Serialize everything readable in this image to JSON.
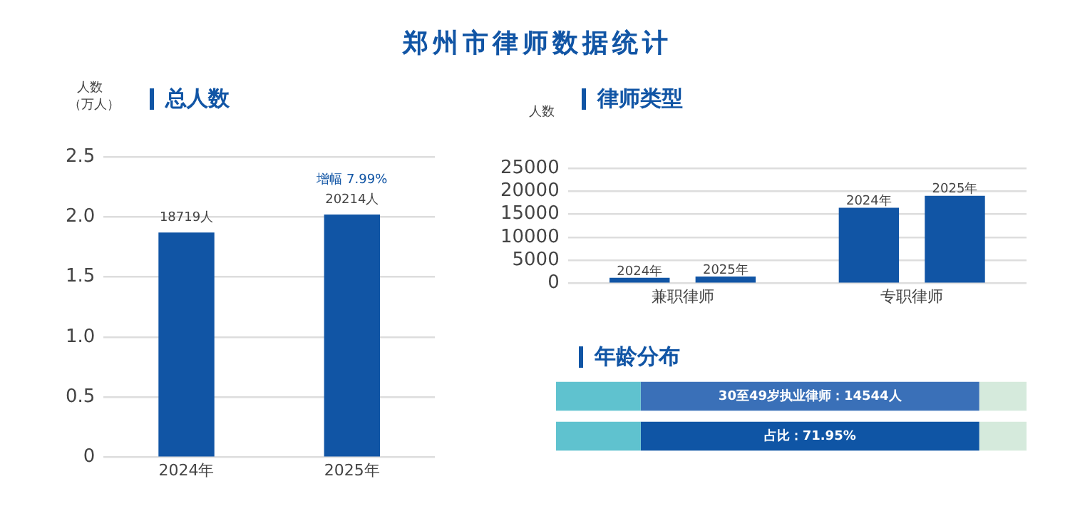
{
  "chart_data": [
    {
      "type": "bar",
      "title": "郑州市律师数据统计",
      "subtitle": "总人数",
      "ylabel": "人数（万人）",
      "categories": [
        "2024年",
        "2025年"
      ],
      "series": [
        {
          "color": "#1155a5",
          "values": [
            1.87,
            2.02
          ]
        }
      ],
      "annotations": [
        {
          "text": "18719人",
          "x": "2024年",
          "y": 1.87
        },
        {
          "text": "20214人",
          "x": "2025年",
          "y": 2.02
        },
        {
          "text": "增幅 7.99%",
          "x": "2025年",
          "y": 2.02
        }
      ],
      "ylim": [
        0,
        2.5
      ],
      "yticks": [
        {
          "value": 0,
          "label": "0"
        },
        {
          "value": 0.5,
          "label": "0.5"
        },
        {
          "value": 1,
          "label": "1.0"
        },
        {
          "value": 1.5,
          "label": "1.5"
        },
        {
          "value": 2,
          "label": "2.0"
        },
        {
          "value": 2.5,
          "label": "2.5"
        }
      ],
      "grid": "y",
      "legend": false
    },
    {
      "type": "bar",
      "title": "律师类型",
      "ylabel": "人数",
      "categories": [
        "兼职律师",
        "专职律师"
      ],
      "series": [
        {
          "name": "2024年",
          "color": "#1155a5",
          "values": [
            1200,
            16400
          ]
        },
        {
          "name": "2025年",
          "color": "#1155a5",
          "values": [
            1500,
            19000
          ]
        }
      ],
      "ylim": [
        0,
        25000
      ],
      "yticks": [
        0,
        5000,
        10000,
        15000,
        20000,
        25000
      ],
      "grid": "y",
      "legend": false
    },
    {
      "type": "bar",
      "title": "年龄分布",
      "orientation": "horizontal",
      "stacked": true,
      "categories": [
        null,
        null
      ],
      "series": [
        {
          "color": "#5fc2cf",
          "values": [
            18,
            18
          ]
        },
        {
          "colors": [
            "#3a70b8",
            "#0f55a5"
          ],
          "values": [
            71.95,
            71.95
          ],
          "value_labels": [
            null,
            "占比：71.95%"
          ]
        },
        {
          "color": "#d5eadc",
          "values": [
            10.05,
            10.05
          ]
        }
      ],
      "annotations": [
        "30至49岁执业律师：14544人"
      ],
      "xlim": [
        0,
        100
      ],
      "tick_labels": false,
      "grid": false,
      "legend": false
    }
  ]
}
